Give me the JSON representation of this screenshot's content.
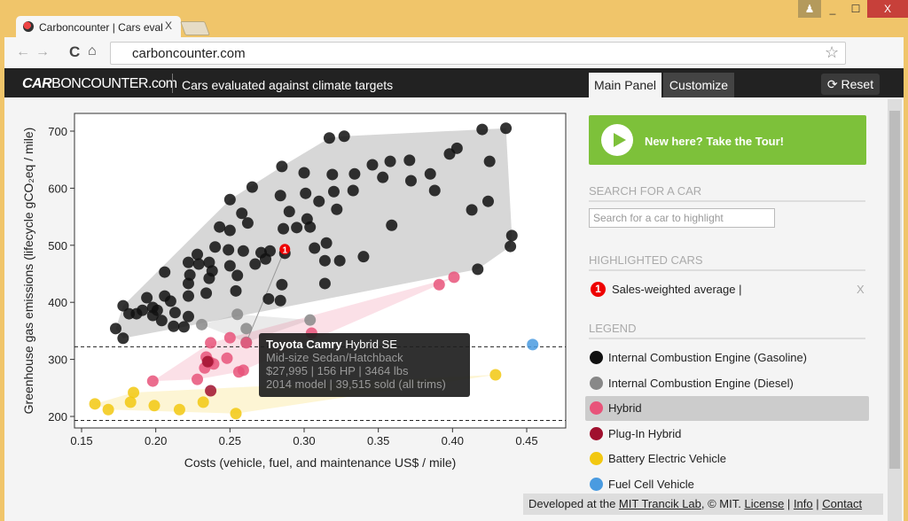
{
  "browser": {
    "tab_title": "Carboncounter | Cars eval",
    "tab_close": "X",
    "url": "carboncounter.com",
    "min": "_",
    "max": "☐",
    "close": "X"
  },
  "header": {
    "logo_bold": "CAR",
    "logo_rest": "BONCOUNTER.com",
    "subtitle": "Cars evaluated against climate targets",
    "tabs": [
      "Main Panel",
      "Customize"
    ],
    "active_tab": "Main Panel",
    "reset_label": "⟳ Reset"
  },
  "panel": {
    "tour_label": "New here? Take the Tour!",
    "search_heading": "SEARCH FOR A CAR",
    "search_placeholder": "Search for a car to highlight",
    "highlighted_heading": "HIGHLIGHTED CARS",
    "highlighted": [
      {
        "num": "1",
        "label": "Sales-weighted average |",
        "remove": "X"
      }
    ],
    "legend_heading": "LEGEND",
    "legend": [
      {
        "label": "Internal Combustion Engine (Gasoline)",
        "color": "#111111"
      },
      {
        "label": "Internal Combustion Engine (Diesel)",
        "color": "#888888"
      },
      {
        "label": "Hybrid",
        "color": "#e8547a"
      },
      {
        "label": "Plug-In Hybrid",
        "color": "#a0102e"
      },
      {
        "label": "Battery Electric Vehicle",
        "color": "#f2c811"
      },
      {
        "label": "Fuel Cell Vehicle",
        "color": "#4a9be0"
      }
    ],
    "legend_selected": "Hybrid"
  },
  "footer": {
    "prefix": "Developed at the",
    "lab": "MIT Trancik Lab",
    "mid": ", © MIT.",
    "license": "License",
    "info": "Info",
    "contact": "Contact",
    "sep": "|"
  },
  "tooltip": {
    "make": "Toyota Camry",
    "trim": "Hybrid SE",
    "line2": "Mid-size Sedan/Hatchback",
    "line3": "$27,995 | 156 HP | 3464 lbs",
    "line4": "2014 model | 39,515 sold (all trims)"
  },
  "chart_data": {
    "type": "scatter",
    "xlabel": "Costs (vehicle, fuel, and maintenance US$ / mile)",
    "ylabel": "Greenhouse gas emissions (lifecycle gCO₂eq / mile)",
    "xlim": [
      0.14,
      0.47
    ],
    "ylim": [
      180,
      735
    ],
    "xticks": [
      0.15,
      0.2,
      0.25,
      0.3,
      0.35,
      0.4,
      0.45
    ],
    "xtick_labels": [
      "0.15",
      "0.20",
      "0.25",
      "0.30",
      "0.35",
      "0.40",
      "0.45"
    ],
    "yticks": [
      200,
      300,
      400,
      500,
      600,
      700
    ],
    "target_lines": [
      322,
      193
    ],
    "highlight_average": {
      "label": "1",
      "x": 0.287,
      "y": 493
    },
    "series": [
      {
        "name": "Internal Combustion Engine (Gasoline)",
        "color": "#111111",
        "points": [
          [
            0.44,
            517
          ],
          [
            0.439,
            498
          ],
          [
            0.436,
            705
          ],
          [
            0.42,
            703
          ],
          [
            0.425,
            647
          ],
          [
            0.424,
            577
          ],
          [
            0.417,
            458
          ],
          [
            0.413,
            562
          ],
          [
            0.403,
            670
          ],
          [
            0.398,
            660
          ],
          [
            0.385,
            625
          ],
          [
            0.388,
            596
          ],
          [
            0.372,
            613
          ],
          [
            0.371,
            649
          ],
          [
            0.358,
            647
          ],
          [
            0.353,
            619
          ],
          [
            0.359,
            535
          ],
          [
            0.346,
            641
          ],
          [
            0.34,
            480
          ],
          [
            0.334,
            625
          ],
          [
            0.333,
            596
          ],
          [
            0.327,
            691
          ],
          [
            0.317,
            688
          ],
          [
            0.319,
            624
          ],
          [
            0.32,
            594
          ],
          [
            0.322,
            563
          ],
          [
            0.324,
            473
          ],
          [
            0.314,
            473
          ],
          [
            0.314,
            433
          ],
          [
            0.315,
            504
          ],
          [
            0.31,
            577
          ],
          [
            0.301,
            591
          ],
          [
            0.3,
            627
          ],
          [
            0.295,
            531
          ],
          [
            0.304,
            532
          ],
          [
            0.307,
            495
          ],
          [
            0.302,
            546
          ],
          [
            0.29,
            559
          ],
          [
            0.284,
            587
          ],
          [
            0.285,
            638
          ],
          [
            0.286,
            529
          ],
          [
            0.287,
            486
          ],
          [
            0.285,
            431
          ],
          [
            0.284,
            403
          ],
          [
            0.276,
            406
          ],
          [
            0.277,
            490
          ],
          [
            0.274,
            476
          ],
          [
            0.271,
            487
          ],
          [
            0.267,
            467
          ],
          [
            0.265,
            602
          ],
          [
            0.262,
            539
          ],
          [
            0.259,
            490
          ],
          [
            0.258,
            556
          ],
          [
            0.255,
            447
          ],
          [
            0.254,
            420
          ],
          [
            0.249,
            492
          ],
          [
            0.25,
            526
          ],
          [
            0.25,
            464
          ],
          [
            0.25,
            580
          ],
          [
            0.243,
            532
          ],
          [
            0.24,
            497
          ],
          [
            0.238,
            455
          ],
          [
            0.236,
            442
          ],
          [
            0.234,
            416
          ],
          [
            0.236,
            470
          ],
          [
            0.229,
            467
          ],
          [
            0.228,
            484
          ],
          [
            0.222,
            470
          ],
          [
            0.222,
            433
          ],
          [
            0.222,
            411
          ],
          [
            0.222,
            375
          ],
          [
            0.223,
            448
          ],
          [
            0.219,
            357
          ],
          [
            0.212,
            358
          ],
          [
            0.213,
            382
          ],
          [
            0.21,
            402
          ],
          [
            0.206,
            453
          ],
          [
            0.206,
            411
          ],
          [
            0.201,
            386
          ],
          [
            0.198,
            391
          ],
          [
            0.198,
            377
          ],
          [
            0.194,
            408
          ],
          [
            0.191,
            386
          ],
          [
            0.187,
            380
          ],
          [
            0.182,
            380
          ],
          [
            0.178,
            394
          ],
          [
            0.173,
            354
          ],
          [
            0.178,
            337
          ],
          [
            0.204,
            368
          ]
        ]
      },
      {
        "name": "Internal Combustion Engine (Diesel)",
        "color": "#888888",
        "points": [
          [
            0.231,
            361
          ],
          [
            0.255,
            379
          ],
          [
            0.261,
            354
          ],
          [
            0.261,
            330
          ],
          [
            0.304,
            369
          ]
        ]
      },
      {
        "name": "Hybrid",
        "color": "#e8547a",
        "points": [
          [
            0.391,
            431
          ],
          [
            0.401,
            444
          ],
          [
            0.237,
            329
          ],
          [
            0.25,
            338
          ],
          [
            0.261,
            329
          ],
          [
            0.234,
            304
          ],
          [
            0.236,
            296
          ],
          [
            0.239,
            292
          ],
          [
            0.233,
            285
          ],
          [
            0.228,
            265
          ],
          [
            0.256,
            278
          ],
          [
            0.259,
            281
          ],
          [
            0.198,
            262
          ],
          [
            0.248,
            302
          ],
          [
            0.305,
            346
          ]
        ]
      },
      {
        "name": "Plug-In Hybrid",
        "color": "#a0102e",
        "points": [
          [
            0.237,
            245
          ],
          [
            0.235,
            296
          ]
        ]
      },
      {
        "name": "Battery Electric Vehicle",
        "color": "#f2c811",
        "points": [
          [
            0.159,
            222
          ],
          [
            0.168,
            212
          ],
          [
            0.185,
            242
          ],
          [
            0.183,
            225
          ],
          [
            0.199,
            219
          ],
          [
            0.216,
            212
          ],
          [
            0.232,
            225
          ],
          [
            0.254,
            205
          ],
          [
            0.429,
            273
          ]
        ]
      },
      {
        "name": "Fuel Cell Vehicle",
        "color": "#4a9be0",
        "points": [
          [
            0.454,
            326
          ]
        ]
      }
    ]
  }
}
